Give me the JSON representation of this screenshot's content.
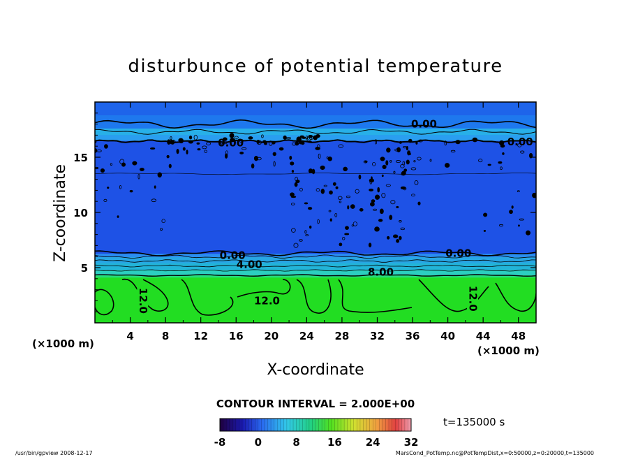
{
  "chart_data": {
    "type": "heatmap",
    "title": "disturbunce of potential temperature",
    "xlabel": "X-coordinate",
    "ylabel": "Z-coordinate",
    "x_unit": "(×1000 m)",
    "y_unit": "(×1000 m)",
    "xlim": [
      0,
      50
    ],
    "ylim": [
      0,
      20
    ],
    "x_ticks": [
      4,
      8,
      12,
      16,
      20,
      24,
      28,
      32,
      36,
      40,
      44,
      48
    ],
    "y_ticks": [
      5,
      10,
      15
    ],
    "contour_interval": "CONTOUR INTERVAL = 2.000E+00",
    "time_label": "t=135000 s",
    "colorbar": {
      "min": -8,
      "max": 32,
      "tick_values": [
        -8,
        0,
        8,
        16,
        24,
        32
      ]
    },
    "contour_labels": [
      {
        "text": "0.00",
        "x": 37.3,
        "z": 18.0
      },
      {
        "text": "0.00",
        "x": 48.2,
        "z": 16.4
      },
      {
        "text": "0.00",
        "x": 15.4,
        "z": 16.3
      },
      {
        "text": "0.00",
        "x": 15.6,
        "z": 6.1
      },
      {
        "text": "0.00",
        "x": 41.2,
        "z": 6.3
      },
      {
        "text": "4.00",
        "x": 17.5,
        "z": 5.3
      },
      {
        "text": "8.00",
        "x": 32.4,
        "z": 4.6
      },
      {
        "text": "12.0",
        "x": 19.5,
        "z": 2.0
      },
      {
        "text": "12.0",
        "x": 5.4,
        "z": 2.0
      },
      {
        "text": "12.0",
        "x": 42.8,
        "z": 2.2
      }
    ],
    "layers": [
      {
        "z_range": [
          0,
          4.3
        ],
        "value": 12,
        "color": "#22dd22"
      },
      {
        "z_range": [
          4.3,
          6.0
        ],
        "value": 4,
        "color": "#22b4d8"
      },
      {
        "z_range": [
          6.0,
          16.5
        ],
        "value": -2,
        "color": "#1e52e6"
      },
      {
        "z_range": [
          16.5,
          20
        ],
        "value": 0,
        "color": "#1e78ee"
      }
    ],
    "grid": false
  },
  "footer": {
    "left": "/usr/bin/gpview   2008-12-17",
    "right": "MarsCond_PotTemp.nc@PotTempDist,x=0:50000,z=0:20000,t=135000"
  },
  "colors": {
    "background": "#ffffff",
    "green": "#22dd22",
    "cyan": "#22b4d8",
    "blue": "#1e52e6",
    "light_blue": "#1e78ee"
  }
}
